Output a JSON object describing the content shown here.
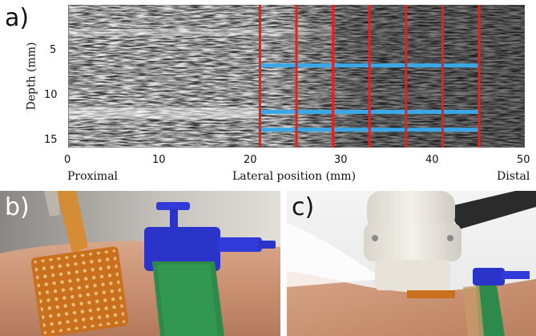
{
  "panels": {
    "a": {
      "label": "a)"
    },
    "b": {
      "label": "b)"
    },
    "c": {
      "label": "c)"
    }
  },
  "chart_data": {
    "type": "image",
    "ylabel": "Depth (mm)",
    "xlabel": "Lateral position (mm)",
    "xlim": [
      0,
      50
    ],
    "ylim": [
      16,
      0
    ],
    "x_ticks": [
      "0",
      "10",
      "20",
      "30",
      "40",
      "50"
    ],
    "y_ticks": [
      "5",
      "10",
      "15"
    ],
    "left_annotation": "Proximal",
    "right_annotation": "Distal",
    "vertical_lines_x_mm": [
      21,
      25,
      29,
      33,
      37,
      41,
      45
    ],
    "vertical_line_color": "#e8201c",
    "horizontal_lines_depth_mm": [
      6.8,
      12.0,
      14.0
    ],
    "horizontal_line_x_range_mm": [
      21,
      45
    ],
    "horizontal_line_color": "#3aa7e6"
  }
}
